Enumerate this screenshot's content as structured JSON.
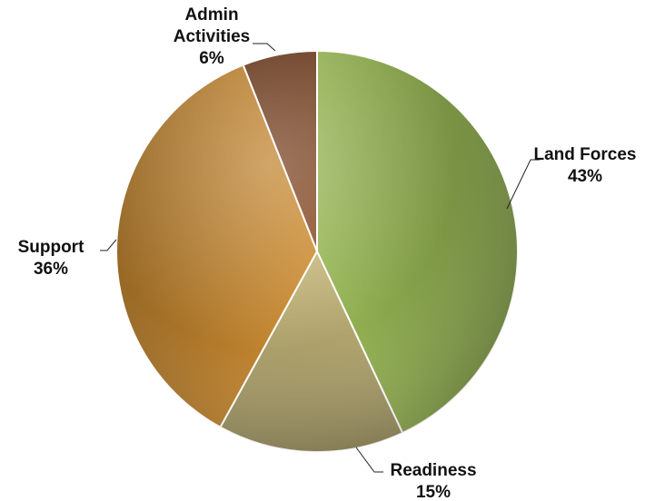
{
  "chart_data": {
    "type": "pie",
    "title": "",
    "slices": [
      {
        "label": "Land Forces",
        "value": 43,
        "value_label": "43%",
        "color": "#86a24a"
      },
      {
        "label": "Readiness",
        "value": 15,
        "value_label": "15%",
        "color": "#b0a36d"
      },
      {
        "label": "Support",
        "value": 36,
        "value_label": "36%",
        "color": "#b77d2c"
      },
      {
        "label": "Admin Activities",
        "value": 6,
        "value_label": "6%",
        "color": "#7a4321"
      }
    ],
    "start_angle": "12 o'clock",
    "direction": "clockwise",
    "legend": "none",
    "data_labels": "outside with leader lines"
  }
}
